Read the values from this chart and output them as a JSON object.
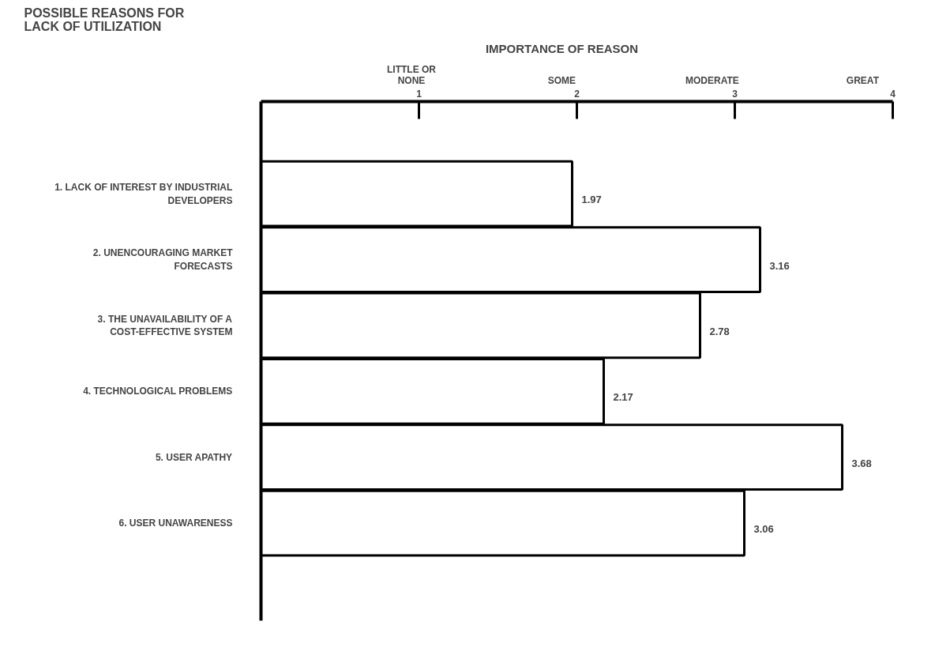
{
  "chart_data": {
    "type": "bar",
    "orientation": "horizontal",
    "title": "POSSIBLE REASONS FOR\nLACK OF UTILIZATION",
    "categories": [
      "1. LACK OF INTEREST BY INDUSTRIAL\nDEVELOPERS",
      "2. UNENCOURAGING MARKET\nFORECASTS",
      "3. THE UNAVAILABILITY OF A\nCOST-EFFECTIVE SYSTEM",
      "4. TECHNOLOGICAL PROBLEMS",
      "5. USER APATHY",
      "6. USER UNAWARENESS"
    ],
    "values": [
      1.97,
      3.16,
      2.78,
      2.17,
      3.68,
      3.06
    ],
    "color": "#ffffff",
    "xlim": [
      0,
      4
    ],
    "xticks": [
      1,
      2,
      3,
      4
    ],
    "annotations": [
      "IMPORTANCE OF REASON",
      "LITTLE OR\nNONE",
      "SOME",
      "MODERATE",
      "GREAT"
    ],
    "data_labels": true,
    "grid": false
  }
}
